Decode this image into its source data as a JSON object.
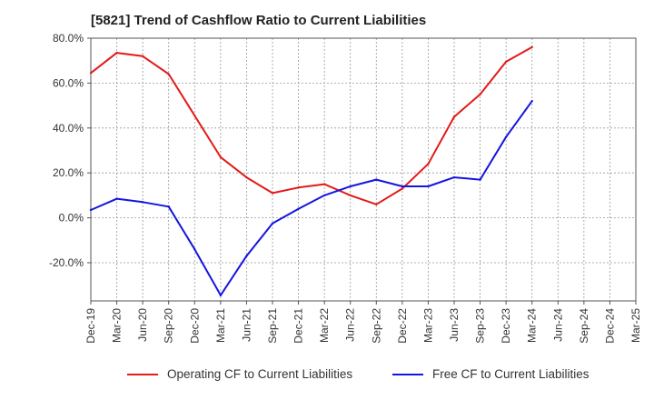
{
  "chart_data": {
    "type": "line",
    "title": "[5821]  Trend of Cashflow Ratio to Current Liabilities",
    "categories": [
      "Dec-19",
      "Mar-20",
      "Jun-20",
      "Sep-20",
      "Dec-20",
      "Mar-21",
      "Jun-21",
      "Sep-21",
      "Dec-21",
      "Mar-22",
      "Jun-22",
      "Sep-22",
      "Dec-22",
      "Mar-23",
      "Jun-23",
      "Sep-23",
      "Dec-23",
      "Mar-24",
      "Jun-24",
      "Sep-24",
      "Dec-24",
      "Mar-25"
    ],
    "ylim": [
      -37,
      80
    ],
    "yticks": [
      80,
      60,
      40,
      20,
      0,
      -20
    ],
    "ytick_labels": [
      "80.0%",
      "60.0%",
      "40.0%",
      "20.0%",
      "0.0%",
      "-20.0%"
    ],
    "grid": true,
    "legend_position": "bottom",
    "series": [
      {
        "name": "Operating CF to Current Liabilities",
        "color": "#e31a1a",
        "values": [
          64.5,
          73.5,
          72.0,
          64.0,
          45.5,
          27.0,
          18.0,
          11.0,
          13.5,
          15.0,
          10.0,
          6.0,
          13.0,
          24.0,
          45.0,
          55.0,
          69.5,
          76.0,
          null,
          null,
          null,
          null
        ]
      },
      {
        "name": "Free CF to Current Liabilities",
        "color": "#1515e0",
        "values": [
          3.5,
          8.5,
          7.0,
          5.0,
          -14.0,
          -34.5,
          -17.0,
          -2.5,
          4.0,
          10.0,
          14.0,
          17.0,
          14.0,
          14.0,
          18.0,
          17.0,
          36.0,
          52.0,
          null,
          null,
          null,
          null
        ]
      }
    ]
  }
}
